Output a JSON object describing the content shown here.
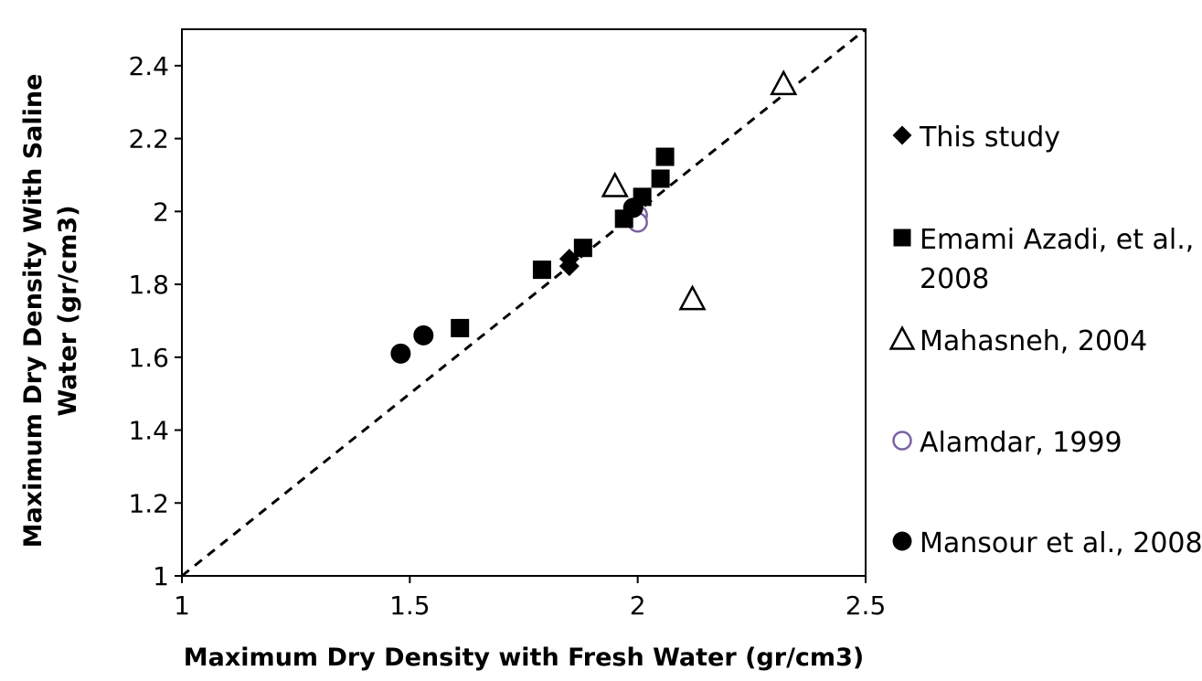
{
  "chart_data": {
    "type": "scatter",
    "xlabel": "Maximum Dry Density with Fresh Water (gr/cm3)",
    "ylabel": "Maximum Dry Density With Saline Water (gr/cm3)",
    "xlim": [
      1,
      2.5
    ],
    "ylim": [
      1,
      2.5
    ],
    "x_ticks": [
      "1",
      "1.5",
      "2",
      "2.5"
    ],
    "y_ticks": [
      "1",
      "1.2",
      "1.4",
      "1.6",
      "1.8",
      "2",
      "2.2",
      "2.4"
    ],
    "grid": false,
    "legend_position": "right",
    "reference_line": {
      "style": "dashed",
      "from": [
        1,
        1
      ],
      "to": [
        2.5,
        2.5
      ]
    },
    "series": [
      {
        "name": "This study",
        "marker": "diamond-filled",
        "color": "#000000",
        "points": [
          [
            1.85,
            1.87
          ],
          [
            1.85,
            1.85
          ]
        ]
      },
      {
        "name": "Emami Azadi, et al., 2008",
        "marker": "square-filled",
        "color": "#000000",
        "points": [
          [
            1.61,
            1.68
          ],
          [
            1.79,
            1.84
          ],
          [
            1.88,
            1.9
          ],
          [
            1.97,
            1.98
          ],
          [
            2.01,
            2.04
          ],
          [
            2.05,
            2.09
          ],
          [
            2.06,
            2.15
          ]
        ]
      },
      {
        "name": "Mahasneh, 2004",
        "marker": "triangle-open",
        "color": "#000000",
        "points": [
          [
            2.32,
            2.35
          ],
          [
            1.95,
            2.07
          ],
          [
            2.12,
            1.76
          ]
        ]
      },
      {
        "name": "Alamdar, 1999",
        "marker": "circle-open",
        "color": "#7b62a3",
        "points": [
          [
            2.0,
            1.99
          ],
          [
            2.0,
            1.97
          ]
        ]
      },
      {
        "name": "Mansour et al., 2008",
        "marker": "circle-filled",
        "color": "#000000",
        "points": [
          [
            1.48,
            1.61
          ],
          [
            1.53,
            1.66
          ],
          [
            1.99,
            2.01
          ]
        ]
      }
    ]
  }
}
